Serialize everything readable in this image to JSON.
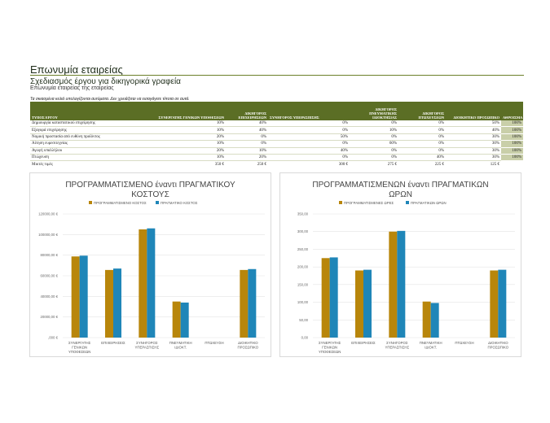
{
  "header": {
    "company": "Επωνυμία εταιρείας",
    "subtitle": "Σχεδιασμός έργου για δικηγορικά γραφεία",
    "subsubtitle": "Επωνυμία εταιρείας της εταιρείας",
    "note": "Τα σκιασμένα κελιά υπολογίζονται αυτόματα. Δεν χρειάζεται να εισαγάγετε τίποτα σε αυτά."
  },
  "table": {
    "columns": [
      "ΤΥΠΟΣ ΕΡΓΟΥ",
      "ΣΥΝΕΡΓΑΤΗΣ ΓΕΝΙΚΩΝ ΥΠΟΘΕΣΕΩΝ",
      "ΔΙΚΗΓΟΡΟΣ ΕΠΙΧΕΙΡΗΣΕΩΝ",
      "ΣΥΝΗΓΟΡΟΣ ΥΠΕΡΑΣΠΙΣΗΣ",
      "ΔΙΚΗΓΟΡΟΣ ΠΝΕΥΜΑΤΙΚΗΣ ΙΔΙΟΚΤΗΣΙΑΣ",
      "ΔΙΚΗΓΟΡΟΣ ΠΤΩΧΕΥΣΕΩΝ",
      "ΔΙΟΙΚΗΤΙΚΟ ΠΡΟΣΩΠΙΚΟ",
      "ΑΘΡΟΙΣΜΑ"
    ],
    "rows": [
      [
        "Δημιουργία καταστατικού επιχείρησης",
        "10%",
        "40%",
        "0%",
        "0%",
        "0%",
        "50%",
        "100%"
      ],
      [
        "Εξαγορά επιχείρησης",
        "10%",
        "40%",
        "0%",
        "10%",
        "0%",
        "40%",
        "100%"
      ],
      [
        "Νομική προστασία από ευθύνη προϊόντος",
        "20%",
        "0%",
        "50%",
        "0%",
        "0%",
        "30%",
        "100%"
      ],
      [
        "Αίτηση ευρεσιτεχνίας",
        "10%",
        "0%",
        "0%",
        "60%",
        "0%",
        "30%",
        "100%"
      ],
      [
        "Αγωγή υπαλλήλου",
        "20%",
        "10%",
        "40%",
        "0%",
        "0%",
        "30%",
        "100%"
      ],
      [
        "Πτώχευση",
        "10%",
        "20%",
        "0%",
        "0%",
        "40%",
        "30%",
        "100%"
      ]
    ],
    "totals": [
      "Μικτές τιμές",
      "350 €",
      "250 €",
      "300 €",
      "275 €",
      "225 €",
      "125 €",
      ""
    ]
  },
  "chart_data": [
    {
      "type": "bar",
      "title": "ΠΡΟΓΡΑΜΜΑΤΙΣΜΕΝΟ έναντι ΠΡΑΓΜΑΤΙΚΟΥ ΚΟΣΤΟΥΣ",
      "title_lines": [
        "ΠΡΟΓΡΑΜΜΑΤΙΣΜΕΝΟ έναντι ΠΡΑΓΜΑΤΙΚΟΥ",
        "ΚΟΣΤΟΥΣ"
      ],
      "categories": [
        "ΣΥΝΕΡΓΑΤΗΣ ΓΕΝΙΚΩΝ ΥΠΟΘΕΣΕΩΝ",
        "ΕΠΙΧΕΙΡΗΣΕΙΣ",
        "ΣΥΝΗΓΟΡΟΣ ΥΠΕΡΑΣΠΙΣΗΣ",
        "ΠΝΕΥΜΑΤΙΚΗ ΙΔΙΟΚΤ.",
        "ΠΤΩΧΕΥΣΗ",
        "ΔΙΟΙΚΗΤΙΚΟ ΠΡΟΣΩΠΙΚΟ"
      ],
      "series": [
        {
          "name": "ΠΡΟΓΡΑΜΜΑΤΙΣΜΕΝΟ ΚΟΣΤΟΣ",
          "color": "#b8860b",
          "values": [
            78750,
            65625,
            105000,
            35000,
            0,
            65625
          ]
        },
        {
          "name": "ΠΡΑΓΜΑΤΙΚΟ ΚΟΣΤΟΣ",
          "color": "#1f86b8",
          "values": [
            79500,
            67000,
            106000,
            34000,
            0,
            66500
          ]
        }
      ],
      "ylim": [
        0,
        120000
      ],
      "ticks": [
        0,
        20000,
        40000,
        60000,
        80000,
        100000,
        120000
      ],
      "tick_labels": [
        ",000 €",
        "20000,00 €",
        "40000,00 €",
        "60000,00 €",
        "80000,00 €",
        "100000,00 €",
        "120000,00 €"
      ],
      "legend": "top",
      "grid": true
    },
    {
      "type": "bar",
      "title": "ΠΡΟΓΡΑΜΜΑΤΙΣΜΕΝΩΝ έναντι ΠΡΑΓΜΑΤΙΚΩΝ ΩΡΩΝ",
      "title_lines": [
        "ΠΡΟΓΡΑΜΜΑΤΙΣΜΕΝΩΝ έναντι ΠΡΑΓΜΑΤΙΚΩΝ",
        "ΩΡΩΝ"
      ],
      "categories": [
        "ΣΥΝΕΡΓΑΤΗΣ ΓΕΝΙΚΩΝ ΥΠΟΘΕΣΕΩΝ",
        "ΕΠΙΧΕΙΡΗΣΕΙΣ",
        "ΣΥΝΗΓΟΡΟΣ ΥΠΕΡΑΣΠΙΣΗΣ",
        "ΠΝΕΥΜΑΤΙΚΗ ΙΔΙΟΚΤ.",
        "ΠΤΩΧΕΥΣΗ",
        "ΔΙΟΙΚΗΤΙΚΟ ΠΡΟΣΩΠΙΚΟ"
      ],
      "series": [
        {
          "name": "ΠΡΟΓΡΑΜΜΑΤΙΣΜΕΝΕΣ ΩΡΕΣ",
          "color": "#b8860b",
          "values": [
            225,
            190,
            300,
            102,
            0,
            190
          ]
        },
        {
          "name": "ΠΡΑΓΜΑΤΙΚΩΝ ΩΡΩΝ",
          "color": "#1f86b8",
          "values": [
            227,
            192,
            302,
            98,
            0,
            192
          ]
        }
      ],
      "ylim": [
        0,
        350
      ],
      "ticks": [
        0,
        50,
        100,
        150,
        200,
        250,
        300,
        350
      ],
      "tick_labels": [
        "0,00",
        "50,00",
        "100,00",
        "150,00",
        "200,00",
        "250,00",
        "300,00",
        "350,00"
      ],
      "legend": "top",
      "grid": true
    }
  ]
}
